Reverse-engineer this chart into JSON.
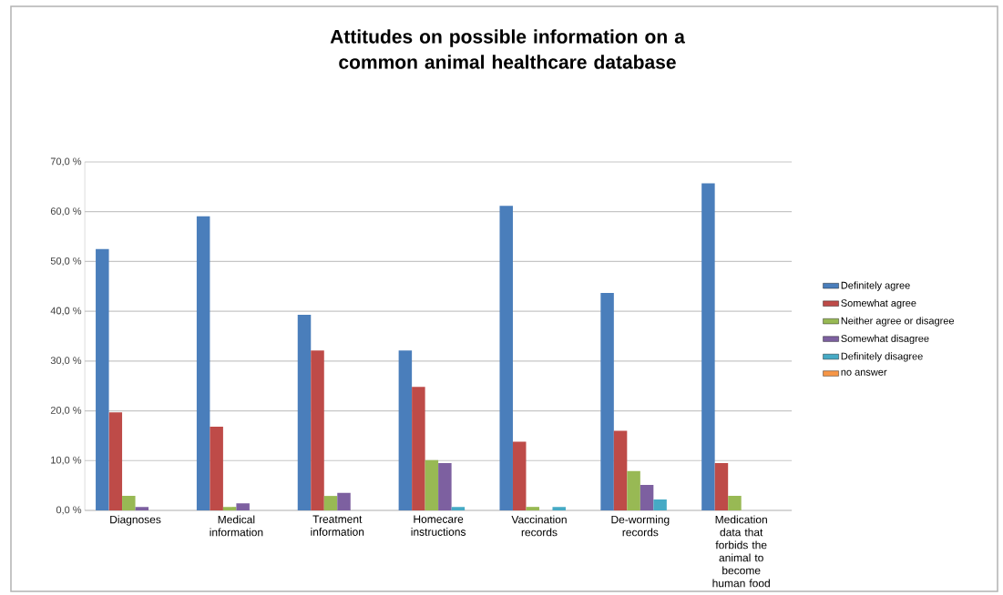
{
  "chart_data": {
    "type": "bar",
    "title": "Attitudes on possible information on a common animal healthcare database",
    "categories": [
      "Diagnoses",
      "Medical information",
      "Treatment information",
      "Homecare instructions",
      "Vaccination records",
      "De-worming records",
      "Medication data that forbids the animal to become human food"
    ],
    "series": [
      {
        "name": "Definitely agree",
        "color": "#4a7ebb",
        "values": [
          52.5,
          59.1,
          39.3,
          32.1,
          61.2,
          43.7,
          65.7
        ]
      },
      {
        "name": "Somewhat agree",
        "color": "#be4b48",
        "values": [
          19.7,
          16.8,
          32.1,
          24.8,
          13.8,
          16.0,
          9.5
        ]
      },
      {
        "name": "Neither agree or disagree",
        "color": "#98b954",
        "values": [
          2.9,
          0.7,
          2.9,
          10.1,
          0.7,
          7.9,
          2.9
        ]
      },
      {
        "name": "Somewhat disagree",
        "color": "#7d60a0",
        "values": [
          0.7,
          1.4,
          3.5,
          9.5,
          0,
          5.1,
          0
        ]
      },
      {
        "name": "Definitely disagree",
        "color": "#46aac5",
        "values": [
          0,
          0,
          0,
          0.7,
          0.7,
          2.2,
          0
        ]
      },
      {
        "name": "no answer",
        "color": "#f79646",
        "values": [
          0,
          0,
          0,
          0,
          0,
          0,
          0
        ]
      }
    ],
    "ylim": [
      0,
      70
    ],
    "yticks": [
      {
        "value": 0,
        "label": "0,0 %"
      },
      {
        "value": 10,
        "label": "10,0 %"
      },
      {
        "value": 20,
        "label": "20,0 %"
      },
      {
        "value": 30,
        "label": "30,0 %"
      },
      {
        "value": 40,
        "label": "40,0 %"
      },
      {
        "value": 50,
        "label": "50,0 %"
      },
      {
        "value": 60,
        "label": "60,0 %"
      },
      {
        "value": 70,
        "label": "70,0 %"
      }
    ],
    "grid": "y",
    "legend": "right"
  }
}
